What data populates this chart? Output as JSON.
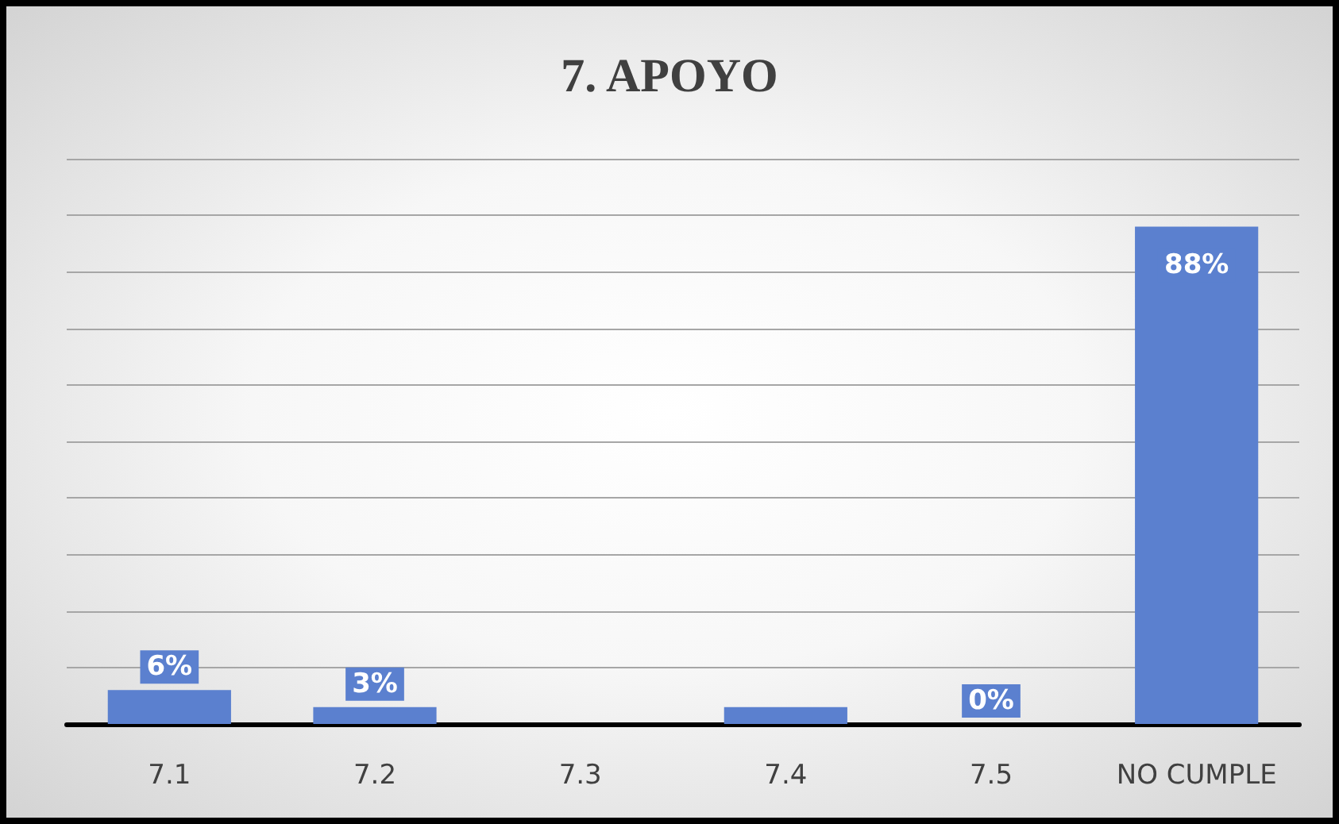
{
  "chart_data": {
    "type": "bar",
    "title": "7. APOYO",
    "categories": [
      "7.1",
      "7.2",
      "7.3",
      "7.4",
      "7.5",
      "NO CUMPLE"
    ],
    "values": [
      6,
      3,
      0,
      3,
      0,
      88
    ],
    "value_labels": [
      "6%",
      "3%",
      null,
      null,
      "0%",
      "88%"
    ],
    "color": "#5b80cf",
    "ylim": [
      0,
      100
    ],
    "yticks": [
      {
        "value": 0,
        "label": null
      },
      {
        "value": 10,
        "label": null
      },
      {
        "value": 20,
        "label": null
      },
      {
        "value": 30,
        "label": null
      },
      {
        "value": 40,
        "label": null
      },
      {
        "value": 50,
        "label": null
      },
      {
        "value": 60,
        "label": null
      },
      {
        "value": 70,
        "label": null
      },
      {
        "value": 80,
        "label": null
      },
      {
        "value": 90,
        "label": null
      },
      {
        "value": 100,
        "label": null
      }
    ],
    "tick_labels": "x",
    "grid": "y"
  }
}
